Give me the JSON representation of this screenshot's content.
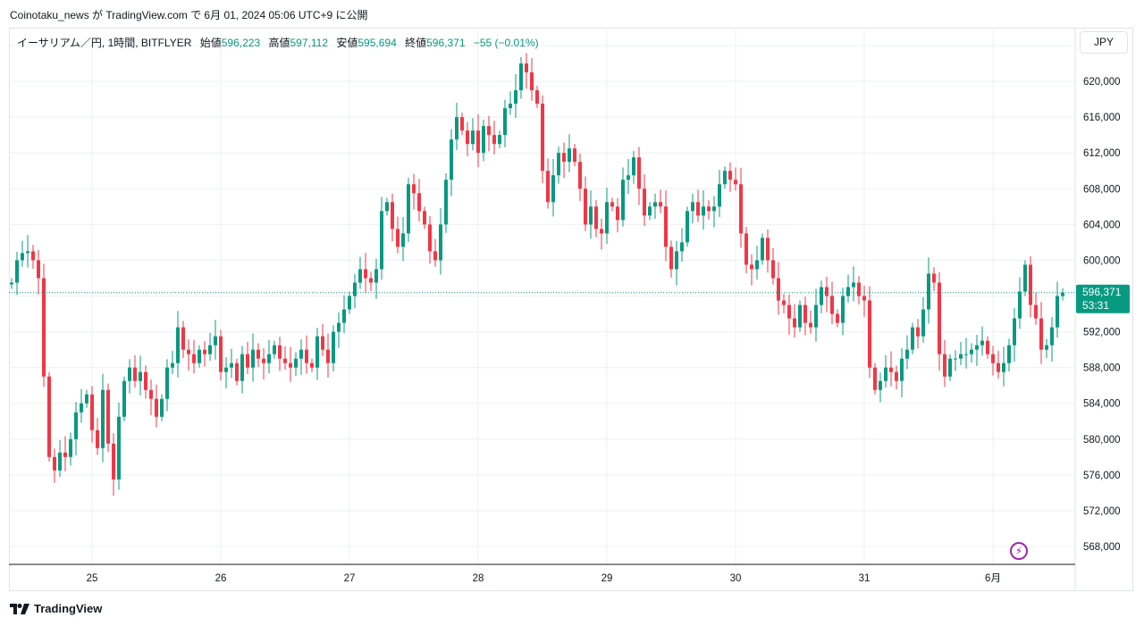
{
  "header": {
    "published": "Coinotaku_news が TradingView.com で 6月 01, 2024 05:06 UTC+9 に公開"
  },
  "legend": {
    "symbol": "イーサリアム／円, 1時間, BITFLYER",
    "open_label": "始値",
    "open": "596,223",
    "high_label": "高値",
    "high": "597,112",
    "low_label": "安値",
    "low": "595,694",
    "close_label": "終値",
    "close": "596,371",
    "change": "−55 (−0.01%)"
  },
  "currency": "JPY",
  "brand": "TradingView",
  "price_tag": {
    "price": "596,371",
    "countdown": "53:31"
  },
  "colors": {
    "up": "#089981",
    "down": "#f23645",
    "grid": "#eef0f3",
    "accent": "#9c27b0"
  },
  "chart_data": {
    "type": "candlestick",
    "title": "イーサリアム／円, 1時間, BITFLYER",
    "x_ticks": [
      "25",
      "26",
      "27",
      "28",
      "29",
      "30",
      "31",
      "6月"
    ],
    "y_ticks": [
      "568,000",
      "572,000",
      "576,000",
      "580,000",
      "584,000",
      "588,000",
      "592,000",
      "596,000",
      "600,000",
      "604,000",
      "608,000",
      "612,000",
      "616,000",
      "620,000",
      "624,000"
    ],
    "ylim": [
      566000,
      626000
    ],
    "grid": true,
    "current_price": 596371,
    "candles_interval": "1h",
    "closes": [
      597500,
      600000,
      600800,
      601000,
      600000,
      598000,
      587000,
      578000,
      576500,
      578500,
      578000,
      580000,
      583000,
      584000,
      585000,
      581000,
      579000,
      585500,
      579500,
      575500,
      582500,
      586500,
      588000,
      586500,
      587500,
      585500,
      584500,
      582500,
      584500,
      588000,
      588500,
      592500,
      590000,
      589500,
      588500,
      590000,
      589500,
      590500,
      591500,
      587500,
      588000,
      588500,
      586500,
      589500,
      588000,
      590000,
      589000,
      588500,
      589500,
      590500,
      589000,
      588500,
      588000,
      589000,
      590000,
      588500,
      588000,
      591500,
      590000,
      588500,
      592000,
      593000,
      594500,
      596000,
      597500,
      599000,
      598000,
      597500,
      599000,
      605500,
      606500,
      603500,
      601500,
      603000,
      608500,
      607500,
      605500,
      604000,
      601000,
      600000,
      604000,
      609000,
      613500,
      616000,
      614500,
      613000,
      614500,
      612000,
      615000,
      614000,
      613000,
      614000,
      617000,
      617500,
      619000,
      622000,
      621000,
      619000,
      617500,
      610000,
      606500,
      609500,
      612000,
      611000,
      612500,
      611000,
      608000,
      604000,
      606000,
      603500,
      603000,
      606500,
      606000,
      604500,
      609000,
      609500,
      611500,
      608000,
      605000,
      606000,
      606500,
      606000,
      601500,
      599000,
      601000,
      602000,
      605500,
      606500,
      605000,
      606000,
      605500,
      606000,
      608500,
      610000,
      609000,
      608500,
      603000,
      599500,
      599000,
      600000,
      602500,
      600000,
      598000,
      595500,
      595000,
      593500,
      592500,
      595000,
      593000,
      592500,
      595000,
      597000,
      596000,
      594000,
      593000,
      596000,
      597000,
      597500,
      596000,
      595500,
      588000,
      585500,
      586500,
      588000,
      587500,
      586500,
      589000,
      590000,
      592500,
      591500,
      594500,
      598500,
      597500,
      589500,
      587000,
      589000,
      589000,
      589500,
      589500,
      590000,
      590500,
      591000,
      589500,
      588500,
      587500,
      588500,
      590500,
      593500,
      596500,
      599500,
      595000,
      593500,
      590000,
      590500,
      592500,
      596000,
      596371
    ]
  }
}
